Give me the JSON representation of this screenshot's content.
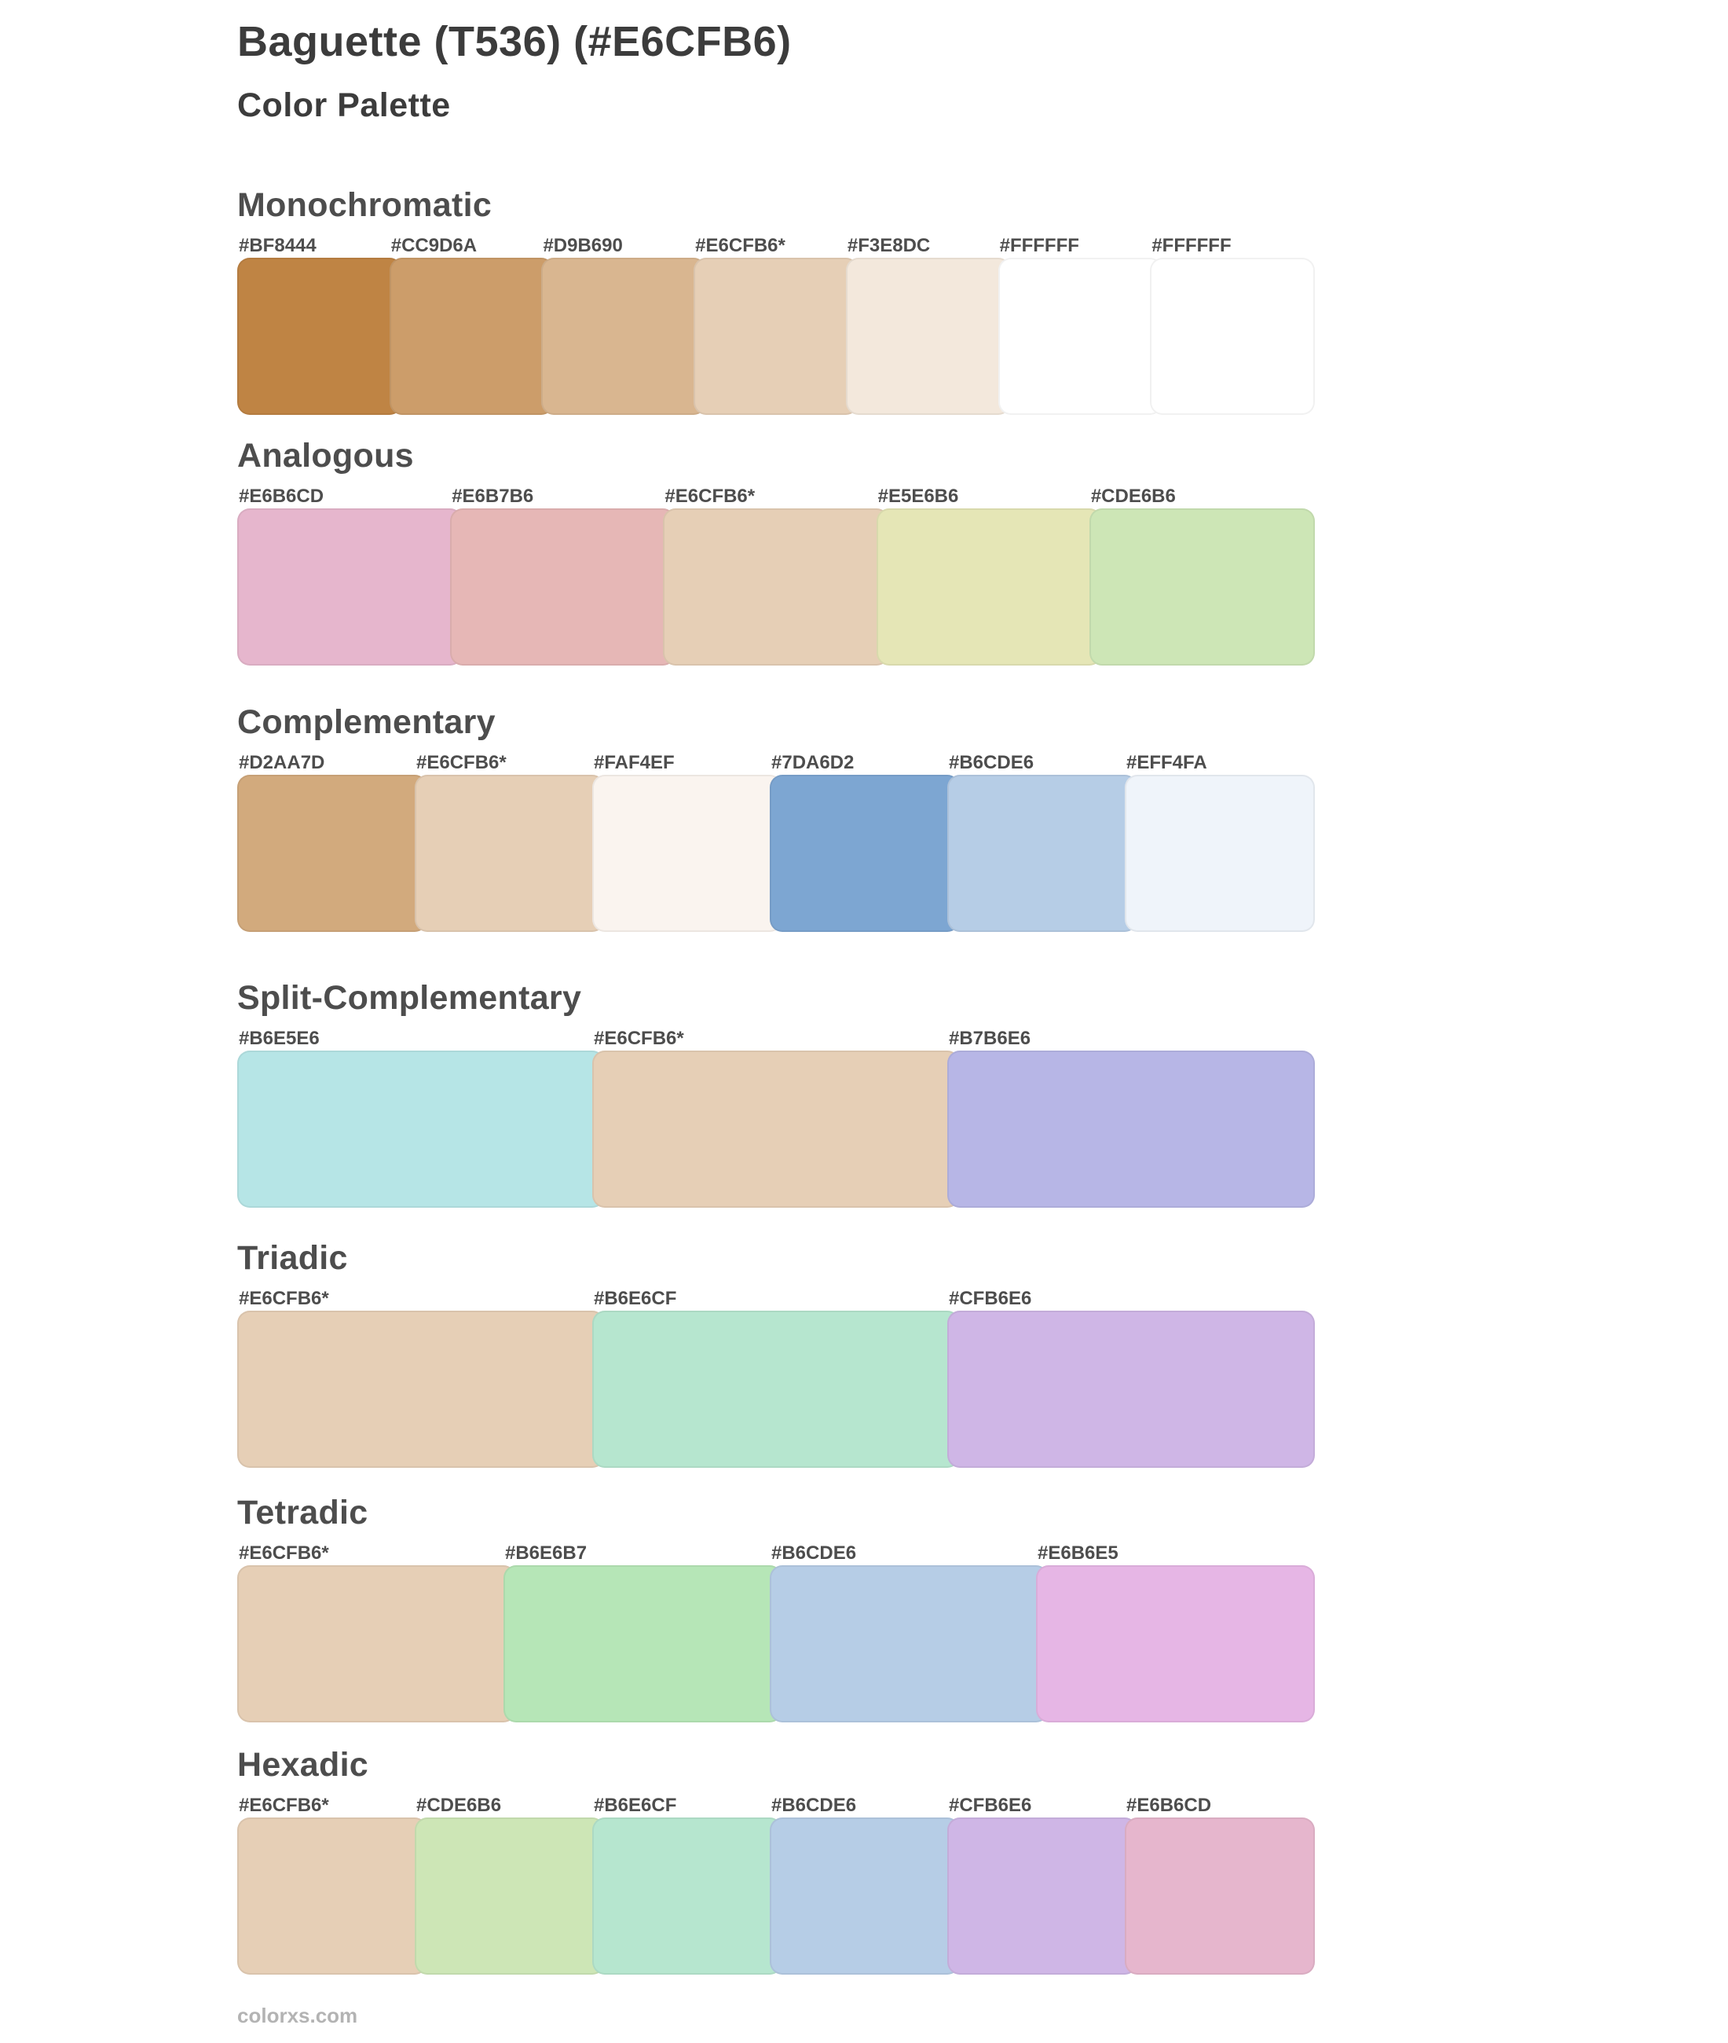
{
  "header": {
    "title": "Baguette (T536) (#E6CFB6)",
    "subtitle": "Color Palette"
  },
  "footer": {
    "site": "colorxs.com"
  },
  "theme": {
    "base_hex": "#E6CFB6",
    "background": "#ffffff",
    "title_color": "#3c3c3c",
    "heading_color": "#4d4d4d",
    "label_color": "#4d4d4d",
    "footer_color": "#b3b3b3"
  },
  "sections": [
    {
      "name": "Monochromatic",
      "swatches": [
        {
          "label": "#BF8444",
          "color": "#BF8444"
        },
        {
          "label": "#CC9D6A",
          "color": "#CC9D6A"
        },
        {
          "label": "#D9B690",
          "color": "#D9B690"
        },
        {
          "label": "#E6CFB6*",
          "color": "#E6CFB6"
        },
        {
          "label": "#F3E8DC",
          "color": "#F3E8DC"
        },
        {
          "label": "#FFFFFF",
          "color": "#FFFFFF"
        },
        {
          "label": "#FFFFFF",
          "color": "#FFFFFF"
        }
      ]
    },
    {
      "name": "Analogous",
      "swatches": [
        {
          "label": "#E6B6CD",
          "color": "#E6B6CD"
        },
        {
          "label": "#E6B7B6",
          "color": "#E6B7B6"
        },
        {
          "label": "#E6CFB6*",
          "color": "#E6CFB6"
        },
        {
          "label": "#E5E6B6",
          "color": "#E5E6B6"
        },
        {
          "label": "#CDE6B6",
          "color": "#CDE6B6"
        }
      ]
    },
    {
      "name": "Complementary",
      "swatches": [
        {
          "label": "#D2AA7D",
          "color": "#D2AA7D"
        },
        {
          "label": "#E6CFB6*",
          "color": "#E6CFB6"
        },
        {
          "label": "#FAF4EF",
          "color": "#FAF4EF"
        },
        {
          "label": "#7DA6D2",
          "color": "#7DA6D2"
        },
        {
          "label": "#B6CDE6",
          "color": "#B6CDE6"
        },
        {
          "label": "#EFF4FA",
          "color": "#EFF4FA"
        }
      ]
    },
    {
      "name": "Split-Complementary",
      "swatches": [
        {
          "label": "#B6E5E6",
          "color": "#B6E5E6"
        },
        {
          "label": "#E6CFB6*",
          "color": "#E6CFB6"
        },
        {
          "label": "#B7B6E6",
          "color": "#B7B6E6"
        }
      ]
    },
    {
      "name": "Triadic",
      "swatches": [
        {
          "label": "#E6CFB6*",
          "color": "#E6CFB6"
        },
        {
          "label": "#B6E6CF",
          "color": "#B6E6CF"
        },
        {
          "label": "#CFB6E6",
          "color": "#CFB6E6"
        }
      ]
    },
    {
      "name": "Tetradic",
      "swatches": [
        {
          "label": "#E6CFB6*",
          "color": "#E6CFB6"
        },
        {
          "label": "#B6E6B7",
          "color": "#B6E6B7"
        },
        {
          "label": "#B6CDE6",
          "color": "#B6CDE6"
        },
        {
          "label": "#E6B6E5",
          "color": "#E6B6E5"
        }
      ]
    },
    {
      "name": "Hexadic",
      "swatches": [
        {
          "label": "#E6CFB6*",
          "color": "#E6CFB6"
        },
        {
          "label": "#CDE6B6",
          "color": "#CDE6B6"
        },
        {
          "label": "#B6E6CF",
          "color": "#B6E6CF"
        },
        {
          "label": "#B6CDE6",
          "color": "#B6CDE6"
        },
        {
          "label": "#CFB6E6",
          "color": "#CFB6E6"
        },
        {
          "label": "#E6B6CD",
          "color": "#E6B6CD"
        }
      ]
    }
  ]
}
